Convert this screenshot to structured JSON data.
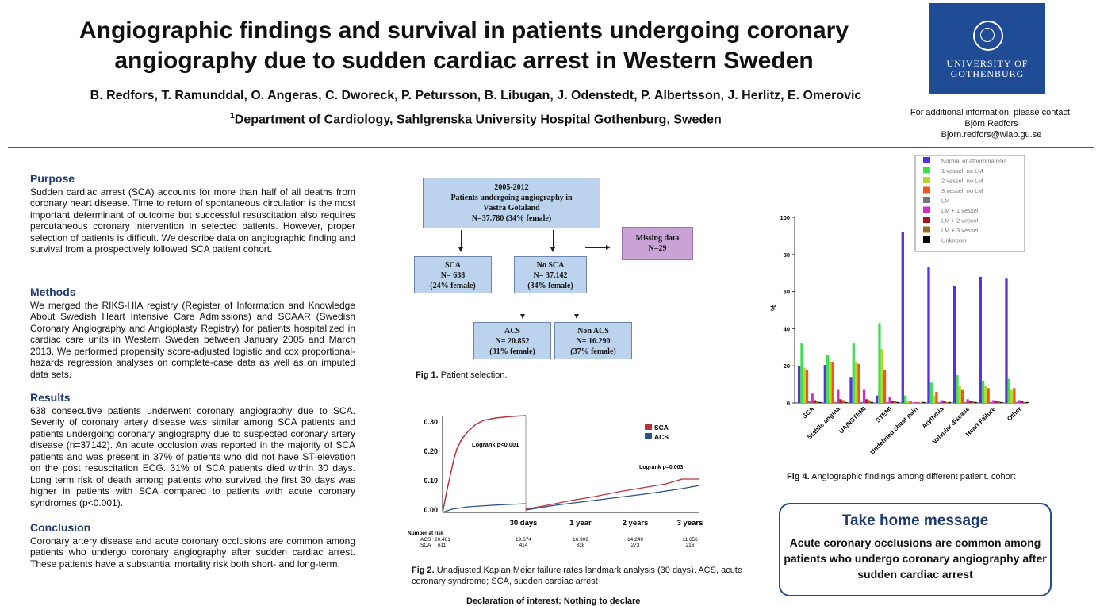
{
  "header": {
    "title_line1": "Angiographic findings and survival in patients undergoing coronary",
    "title_line2": "angiography due to sudden cardiac arrest in Western Sweden",
    "authors": "B. Redfors, T. Ramunddal, O. Angeras, C. Dworeck, P. Petursson, B. Libugan, J. Odenstedt, P. Albertsson, J. Herlitz, E. Omerovic",
    "dept_sup": "1",
    "dept": "Department of Cardiology, Sahlgrenska University Hospital Gothenburg, Sweden",
    "logo_line1": "UNIVERSITY OF",
    "logo_line2": "GOTHENBURG",
    "contact_line1": "For additional information, please contact:",
    "contact_line2": "Björn Redfors",
    "contact_line3": "Bjorn.redfors@wlab.gu.se"
  },
  "purpose": {
    "heading": "Purpose",
    "text": "Sudden cardiac arrest (SCA) accounts for more than half of all deaths from coronary heart disease. Time to return of spontaneous circulation is the most important determinant of outcome but successful resuscitation also requires percutaneous coronary intervention in selected patients. However, proper selection of patients is difficult. We describe data on angiographic finding and survival from a prospectively followed SCA patient cohort."
  },
  "methods": {
    "heading": "Methods",
    "text": "We merged the RIKS-HIA registry (Register of Information and Knowledge About Swedish Heart Intensive Care Admissions) and SCAAR (Swedish Coronary Angiography and Angioplasty Registry) for patients hospitalized in cardiac care units in Western Sweden between January 2005 and March 2013. We performed propensity score-adjusted logistic and cox proportional-hazards regression analyses on complete-case data as well as on imputed data sets."
  },
  "results": {
    "heading": "Results",
    "text": "638 consecutive patients underwent coronary angiography due to SCA. Severity of coronary artery disease was similar among SCA patients and patients undergoing coronary angiography due to suspected coronary artery disease (n=37142). An acute occlusion was reported in the majority of SCA patients and was present in 37% of patients who did not have ST-elevation on the post resuscitation ECG. 31% of SCA patients died within 30 days. Long term risk of death among patients who survived the first 30 days was higher in patients with SCA compared to patients with acute coronary syndromes (p<0.001)."
  },
  "conclusion": {
    "heading": "Conclusion",
    "text": "Coronary artery disease and acute coronary occlusions are common among patients who undergo coronary angiography after sudden cardiac arrest. These patients have a substantial mortality risk both short- and long-term."
  },
  "flowchart": {
    "top": [
      "2005-2012",
      "Patients undergoing angiography in",
      "Västra Götaland",
      "N=37.780 (34% female)"
    ],
    "missing": [
      "Missing data",
      "N=29"
    ],
    "sca": [
      "SCA",
      "N= 638",
      "(24% female)"
    ],
    "nosca": [
      "No SCA",
      "N= 37.142",
      "(34% female)"
    ],
    "acs": [
      "ACS",
      "N= 20.852",
      "(31% female)"
    ],
    "nonacs": [
      "Non ACS",
      "N= 16.290",
      "(37% female)"
    ],
    "caption_label": "Fig 1.",
    "caption_text": " Patient selection."
  },
  "km": {
    "caption_label": "Fig 2.",
    "caption_text": " Unadjusted Kaplan Meier failure rates landmark analysis (30 days). ACS, acute coronary syndrome; SCA, sudden cardiac arrest",
    "y_ticks": [
      "0.30",
      "0.20",
      "0.10",
      "0.00"
    ],
    "x_ticks": [
      "30 days",
      "1 year",
      "2 years",
      "3 years"
    ],
    "logrank1": "Logrank p<0.001",
    "logrank2": "Logrank p=0.003",
    "legend": [
      "SCA",
      "ACS"
    ],
    "colors": [
      "#b8323c",
      "#2a4f8a"
    ],
    "risk_title": "Number at risk",
    "risk_rows": [
      {
        "label": "ACS",
        "values": [
          "20.481",
          "19.674",
          "16.909",
          "14.249",
          "11.656"
        ]
      },
      {
        "label": "SCA",
        "values": [
          "611",
          "414",
          "338",
          "273",
          "216"
        ]
      }
    ]
  },
  "chart_data": {
    "type": "bar",
    "ylabel": "%",
    "ylim": [
      0,
      100
    ],
    "y_ticks": [
      "0",
      "20",
      "40",
      "60",
      "80",
      "100"
    ],
    "legend_placement": "top",
    "categories": [
      "SCA",
      "Stabile angina",
      "UA/NSTEMI",
      "STEMI",
      "Undefined chest pain",
      "Arythmia",
      "Valvular disease",
      "Heart Failure",
      "Other"
    ],
    "series": [
      {
        "name": "Normal or atheromatosis",
        "color": "#5b2ee6",
        "values": [
          20,
          20.5,
          14,
          4,
          92,
          73,
          63,
          68,
          67
        ]
      },
      {
        "name": "1 vessel; no LM",
        "color": "#3de04f",
        "values": [
          32,
          26,
          32,
          43,
          4,
          11,
          15,
          12,
          13
        ]
      },
      {
        "name": "2 vessel; no LM",
        "color": "#b9d62b",
        "values": [
          19,
          22,
          22,
          29,
          1,
          4,
          9,
          9,
          7
        ]
      },
      {
        "name": "3 vessel; no LM",
        "color": "#f0581e",
        "values": [
          18,
          22,
          21,
          18,
          1,
          6,
          7,
          8,
          8
        ]
      },
      {
        "name": "LM",
        "color": "#777777",
        "values": [
          1,
          0.5,
          0.5,
          0.5,
          0.2,
          0.5,
          0.5,
          0.5,
          0.5
        ]
      },
      {
        "name": "LM + 1 vessel",
        "color": "#c830c8",
        "values": [
          5,
          7,
          7,
          3,
          0.5,
          1.5,
          2,
          1.5,
          1.5
        ]
      },
      {
        "name": "LM + 2 vessel",
        "color": "#b01020",
        "values": [
          1.5,
          2,
          2,
          1,
          0.3,
          1,
          1,
          1,
          1
        ]
      },
      {
        "name": "LM + 3 vessel",
        "color": "#9a6d1e",
        "values": [
          1,
          1.5,
          1.5,
          1,
          0.2,
          0.5,
          1,
          1,
          0.5
        ]
      },
      {
        "name": "Unknown",
        "color": "#000000",
        "values": [
          0.5,
          0.5,
          0.5,
          0.5,
          0.5,
          0.5,
          0.5,
          0.5,
          0.5
        ]
      }
    ],
    "caption_label": "Fig 4.",
    "caption_text": " Angiographic findings among different patient. cohort"
  },
  "takehome": {
    "heading": "Take home message",
    "line1": "Acute coronary occlusions are common among",
    "line2": "patients who undergo coronary angiography after",
    "line3": "sudden cardiac arrest"
  },
  "declaration": "Declaration of interest: Nothing to declare"
}
